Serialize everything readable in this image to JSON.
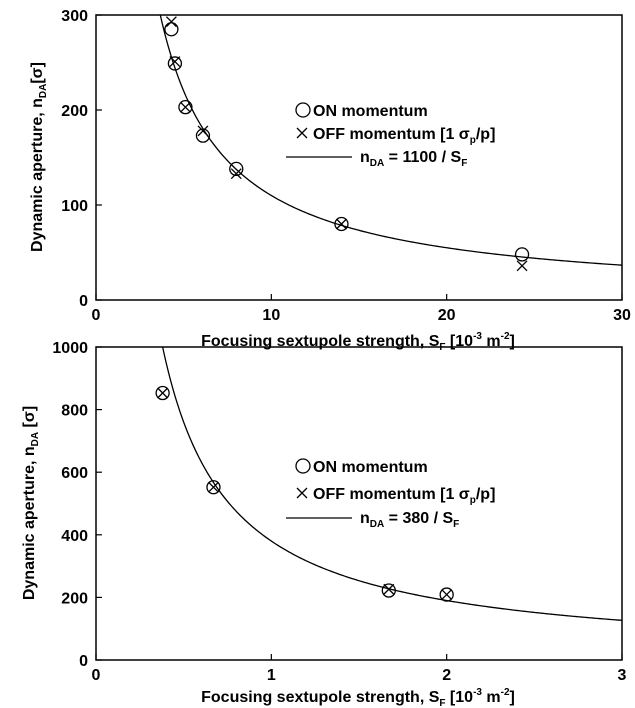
{
  "chart_data": [
    {
      "type": "scatter",
      "xlim": [
        0,
        30
      ],
      "ylim": [
        0,
        300
      ],
      "xticks": [
        0,
        10,
        20,
        30
      ],
      "yticks": [
        0,
        100,
        200,
        300
      ],
      "xlabel": {
        "main": "Focusing sextupole strength, S",
        "sub": "F",
        "unit_pre": " [10",
        "exp1": "-3",
        "unit_mid": " m",
        "exp2": "-2",
        "unit_post": "]"
      },
      "ylabel": {
        "main": "Dynamic aperture, n",
        "sub": "DA",
        "unit": "[σ]"
      },
      "series": [
        {
          "name": "ON momentum",
          "marker": "circle",
          "points": [
            [
              4.3,
              285
            ],
            [
              4.5,
              249
            ],
            [
              5.1,
              203
            ],
            [
              6.1,
              173
            ],
            [
              8.0,
              138
            ],
            [
              14.0,
              80
            ],
            [
              24.3,
              48
            ]
          ]
        },
        {
          "name": "OFF momentum [1 σp/p]",
          "marker": "x",
          "points": [
            [
              4.3,
              293
            ],
            [
              4.5,
              251
            ],
            [
              5.1,
              203
            ],
            [
              6.1,
              178
            ],
            [
              8.0,
              133
            ],
            [
              14.0,
              80
            ],
            [
              24.3,
              36
            ]
          ]
        }
      ],
      "fit": {
        "numerator": 1100,
        "label_pre": "n",
        "label_sub": "DA",
        "label_mid": " = 1100 / S",
        "label_sub2": "F"
      },
      "legend": {
        "on": {
          "text": "ON momentum"
        },
        "off": {
          "pre": "OFF momentum [1 σ",
          "sub": "p",
          "post": "/p]"
        }
      }
    },
    {
      "type": "scatter",
      "xlim": [
        0,
        3
      ],
      "ylim": [
        0,
        1000
      ],
      "xticks": [
        0,
        1,
        2,
        3
      ],
      "yticks": [
        0,
        200,
        400,
        600,
        800,
        1000
      ],
      "xlabel": {
        "main": "Focusing sextupole strength, S",
        "sub": "F",
        "unit_pre": " [10",
        "exp1": "-3",
        "unit_mid": " m",
        "exp2": "-2",
        "unit_post": "]"
      },
      "ylabel": {
        "main": "Dynamic aperture, n",
        "sub": "DA",
        "unit": " [σ]"
      },
      "series": [
        {
          "name": "ON momentum",
          "marker": "circle",
          "points": [
            [
              0.38,
              853
            ],
            [
              0.67,
              552
            ],
            [
              1.67,
              222
            ],
            [
              2.0,
              209
            ]
          ]
        },
        {
          "name": "OFF momentum [1 σp/p]",
          "marker": "x",
          "points": [
            [
              0.38,
              853
            ],
            [
              0.67,
              552
            ],
            [
              1.67,
              226
            ],
            [
              2.0,
              209
            ]
          ]
        }
      ],
      "fit": {
        "numerator": 380,
        "label_pre": "n",
        "label_sub": "DA",
        "label_mid": " = 380 / S",
        "label_sub2": "F"
      },
      "legend": {
        "on": {
          "text": "ON momentum"
        },
        "off": {
          "pre": "OFF momentum [1 σ",
          "sub": "p",
          "post": "/p]"
        }
      }
    }
  ]
}
